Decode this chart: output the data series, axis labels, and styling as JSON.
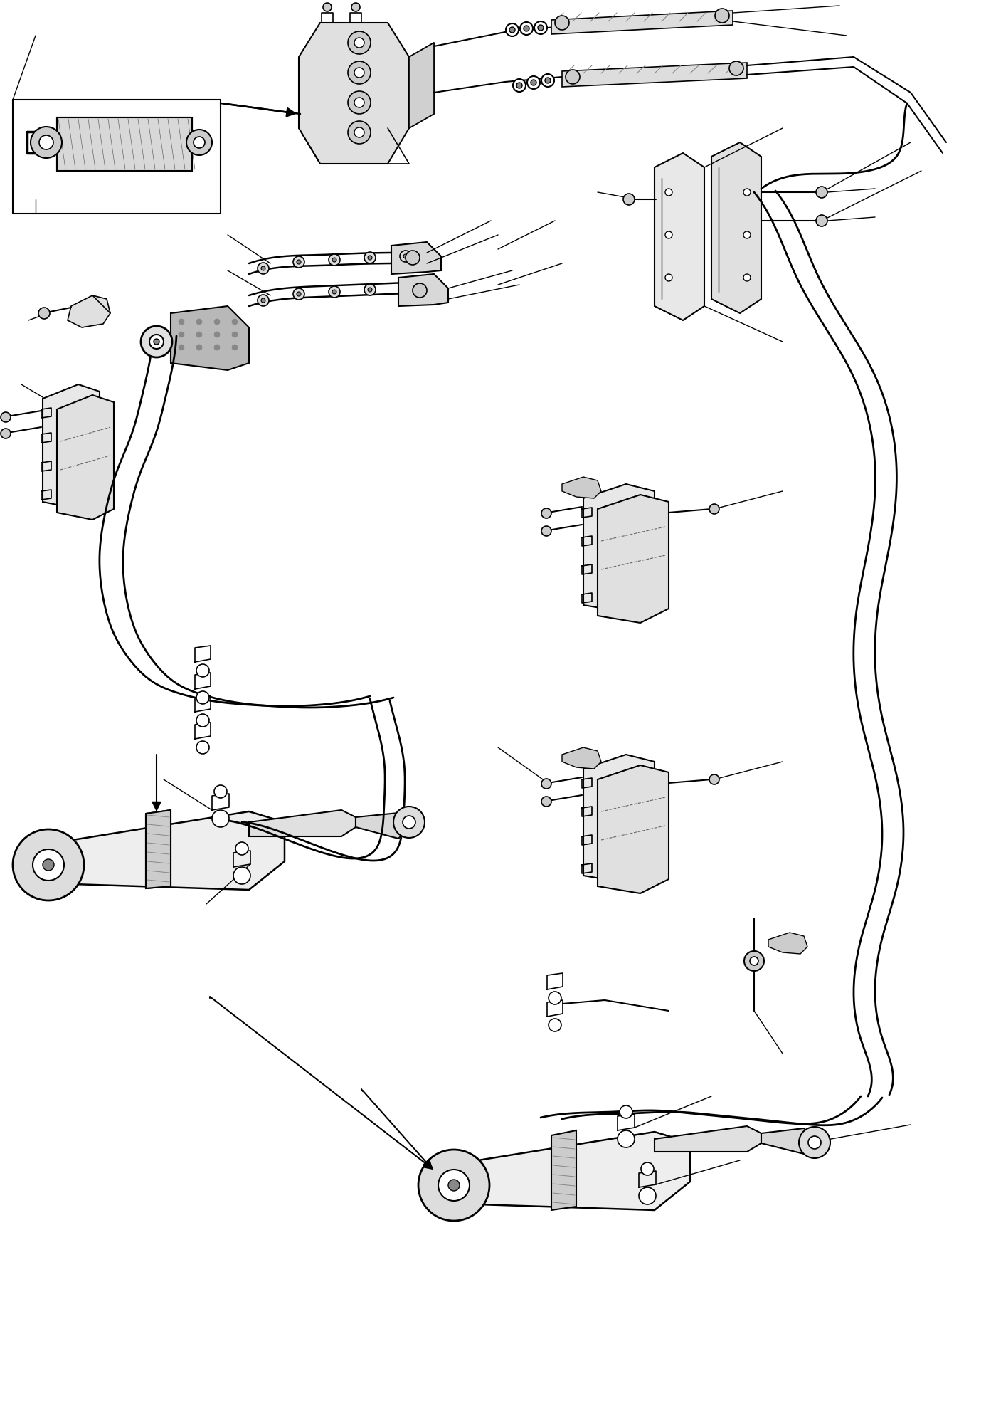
{
  "background_color": "#ffffff",
  "fig_width": 13.93,
  "fig_height": 19.85,
  "dpi": 100,
  "line_color": "#000000"
}
